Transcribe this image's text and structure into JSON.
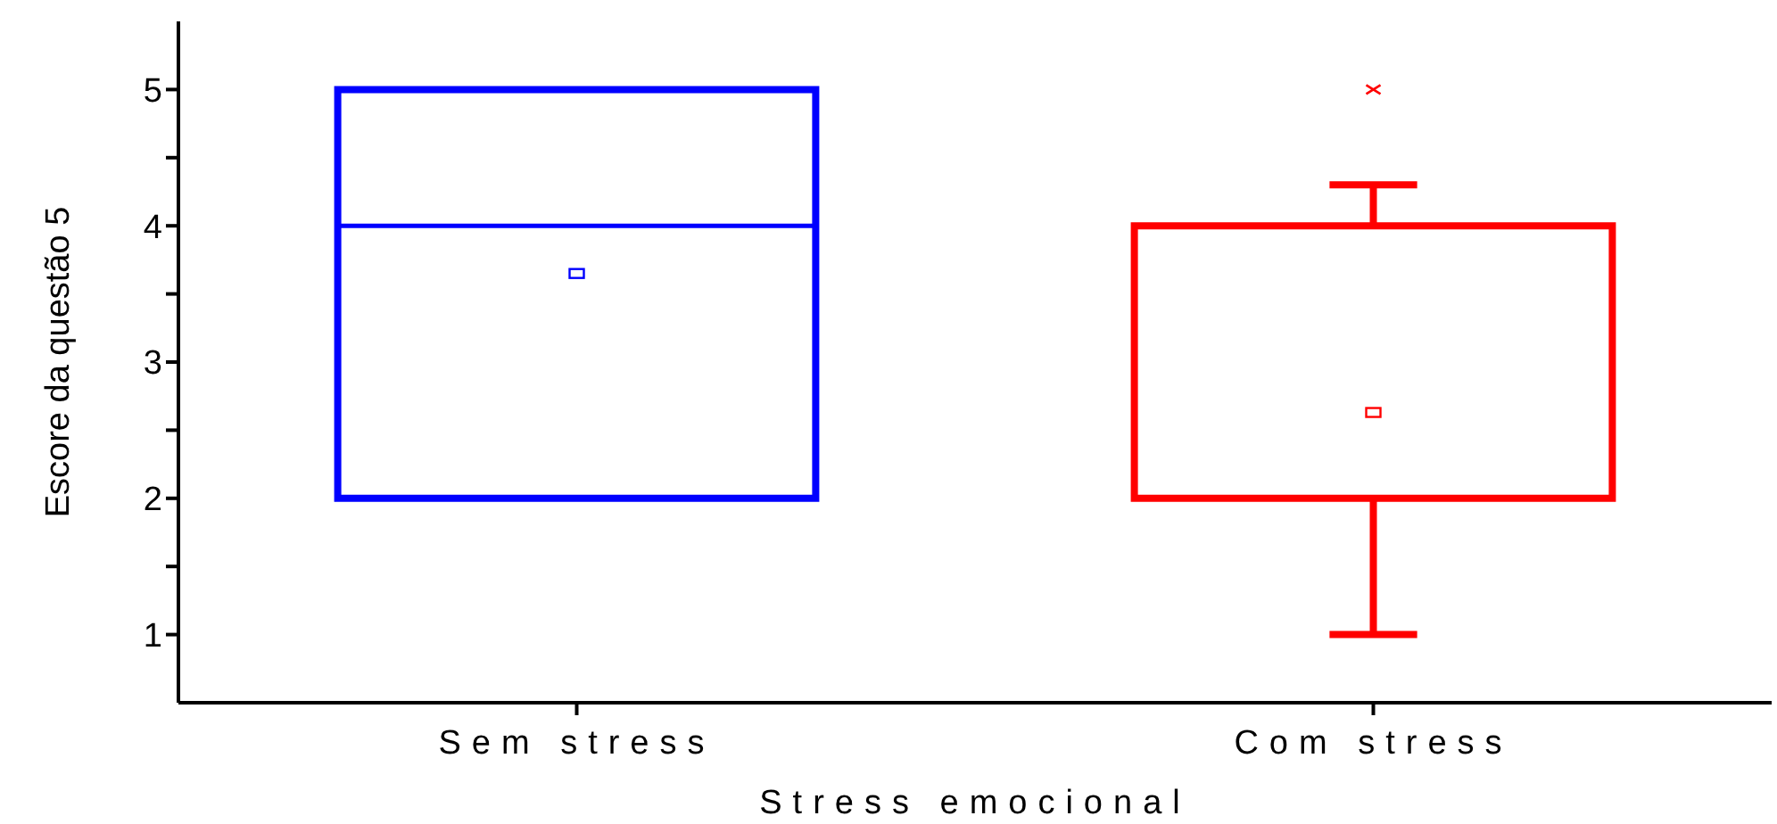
{
  "chart_data": {
    "type": "box",
    "xlabel": "Stress emocional",
    "ylabel": "Escore da questão 5",
    "categories": [
      "Sem stress",
      "Com stress"
    ],
    "colors": [
      "#0000ff",
      "#ff0000"
    ],
    "boxes": [
      {
        "low": 2,
        "q1": 2,
        "median": 4,
        "q3": 5,
        "high": 5,
        "mean": 3.65
      },
      {
        "low": 1,
        "q1": 2,
        "median": 2,
        "q3": 4,
        "high": 4.3,
        "mean": 2.63,
        "outliers": [
          5
        ]
      }
    ],
    "ylim": [
      0.5,
      5.5
    ],
    "yticks": [
      1,
      {
        "value": 1.5,
        "label": null
      },
      2,
      {
        "value": 2.5,
        "label": null
      },
      3,
      {
        "value": 3.5,
        "label": null
      },
      4,
      {
        "value": 4.5,
        "label": null
      },
      5
    ]
  }
}
